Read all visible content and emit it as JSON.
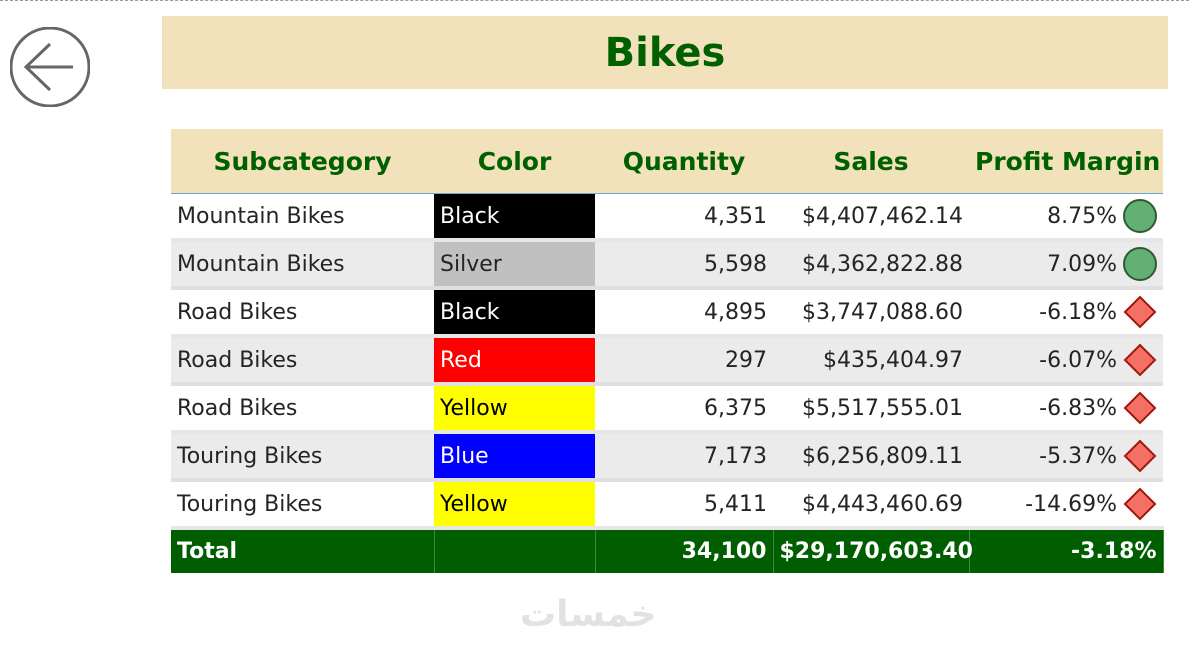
{
  "title": "Bikes",
  "back_icon": "arrow-left-circle-icon",
  "columns": [
    "Subcategory",
    "Color",
    "Quantity",
    "Sales",
    "Profit Margin"
  ],
  "rows": [
    {
      "subcategory": "Mountain Bikes",
      "color": "Black",
      "color_bg": "#000000",
      "color_fg": "#ffffff",
      "quantity": "4,351",
      "sales": "$4,407,462.14",
      "margin": "8.75%",
      "indicator": "green-circle"
    },
    {
      "subcategory": "Mountain Bikes",
      "color": "Silver",
      "color_bg": "#c0c0c0",
      "color_fg": "#252423",
      "quantity": "5,598",
      "sales": "$4,362,822.88",
      "margin": "7.09%",
      "indicator": "green-circle"
    },
    {
      "subcategory": "Road Bikes",
      "color": "Black",
      "color_bg": "#000000",
      "color_fg": "#ffffff",
      "quantity": "4,895",
      "sales": "$3,747,088.60",
      "margin": "-6.18%",
      "indicator": "red-diamond"
    },
    {
      "subcategory": "Road Bikes",
      "color": "Red",
      "color_bg": "#ff0000",
      "color_fg": "#ffffff",
      "quantity": "297",
      "sales": "$435,404.97",
      "margin": "-6.07%",
      "indicator": "red-diamond"
    },
    {
      "subcategory": "Road Bikes",
      "color": "Yellow",
      "color_bg": "#ffff00",
      "color_fg": "#000000",
      "quantity": "6,375",
      "sales": "$5,517,555.01",
      "margin": "-6.83%",
      "indicator": "red-diamond"
    },
    {
      "subcategory": "Touring Bikes",
      "color": "Blue",
      "color_bg": "#0000ff",
      "color_fg": "#ffffff",
      "quantity": "7,173",
      "sales": "$6,256,809.11",
      "margin": "-5.37%",
      "indicator": "red-diamond"
    },
    {
      "subcategory": "Touring Bikes",
      "color": "Yellow",
      "color_bg": "#ffff00",
      "color_fg": "#000000",
      "quantity": "5,411",
      "sales": "$4,443,460.69",
      "margin": "-14.69%",
      "indicator": "red-diamond"
    }
  ],
  "total": {
    "label": "Total",
    "quantity": "34,100",
    "sales": "$29,170,603.40",
    "margin": "-3.18%"
  },
  "colors": {
    "accent": "#006000",
    "header_bg": "#f2e2bc",
    "total_bg": "#005e00",
    "good": "#63b073",
    "bad": "#f46f64"
  },
  "watermark": "خمسات"
}
